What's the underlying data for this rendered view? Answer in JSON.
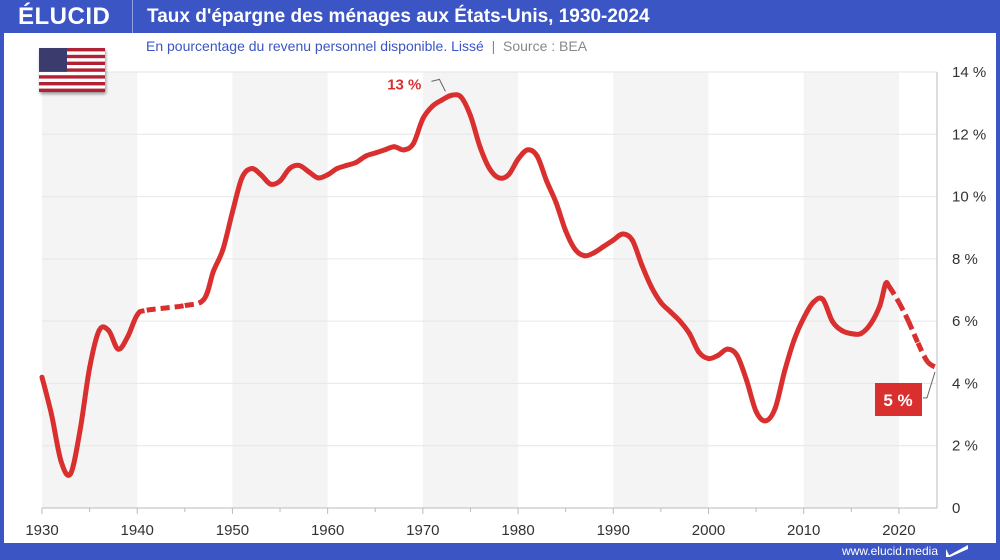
{
  "header": {
    "logo": "ÉLUCID",
    "title": "Taux d'épargne des ménages aux États-Unis, 1930-2024"
  },
  "subtitle": {
    "text": "En pourcentage du revenu personnel disponible. Lissé",
    "separator": "|",
    "source": "Source : BEA"
  },
  "footer": {
    "url": "www.elucid.media"
  },
  "colors": {
    "brand": "#3b55c4",
    "line": "#d9302f",
    "band": "#f4f4f4"
  },
  "chart_data": {
    "type": "line",
    "title": "Taux d'épargne des ménages aux États-Unis, 1930-2024",
    "xlim": [
      1930,
      2024
    ],
    "ylim": [
      0,
      14
    ],
    "x_ticks": [
      1930,
      1940,
      1950,
      1960,
      1970,
      1980,
      1990,
      2000,
      2010,
      2020
    ],
    "x_tick_labels": [
      "1930",
      "1940",
      "1950",
      "1960",
      "1970",
      "1980",
      "1990",
      "2000",
      "2010",
      "2020"
    ],
    "y_ticks": [
      0,
      2,
      4,
      6,
      8,
      10,
      12,
      14
    ],
    "y_tick_labels": [
      "0",
      "2 %",
      "4 %",
      "6 %",
      "8 %",
      "10 %",
      "12 %",
      "14 %"
    ],
    "y_axis": "right",
    "grid": true,
    "dashed_ranges": [
      [
        1940,
        1947
      ],
      [
        2019,
        2024
      ]
    ],
    "series": [
      {
        "x": [
          1930,
          1931,
          1932,
          1933,
          1934,
          1935,
          1936,
          1937,
          1938,
          1939,
          1940,
          1941,
          1945,
          1947,
          1948,
          1949,
          1950,
          1951,
          1952,
          1953,
          1954,
          1955,
          1956,
          1957,
          1958,
          1959,
          1960,
          1961,
          1962,
          1963,
          1964,
          1965,
          1966,
          1967,
          1968,
          1969,
          1970,
          1971,
          1972,
          1973,
          1974,
          1975,
          1976,
          1977,
          1978,
          1979,
          1980,
          1981,
          1982,
          1983,
          1984,
          1985,
          1986,
          1987,
          1988,
          1989,
          1990,
          1991,
          1992,
          1993,
          1994,
          1995,
          1996,
          1997,
          1998,
          1999,
          2000,
          2001,
          2002,
          2003,
          2004,
          2005,
          2006,
          2007,
          2008,
          2009,
          2010,
          2011,
          2012,
          2013,
          2014,
          2015,
          2016,
          2017,
          2018,
          2018.6,
          2019,
          2020,
          2021,
          2022,
          2023,
          2024
        ],
        "y": [
          4.2,
          3.0,
          1.5,
          1.1,
          2.5,
          4.5,
          5.7,
          5.7,
          5.1,
          5.5,
          6.2,
          6.35,
          6.5,
          6.7,
          7.6,
          8.3,
          9.5,
          10.6,
          10.9,
          10.7,
          10.4,
          10.5,
          10.9,
          11.0,
          10.8,
          10.6,
          10.7,
          10.9,
          11.0,
          11.1,
          11.3,
          11.4,
          11.5,
          11.6,
          11.5,
          11.7,
          12.5,
          12.9,
          13.1,
          13.25,
          13.2,
          12.6,
          11.6,
          10.9,
          10.6,
          10.7,
          11.2,
          11.5,
          11.3,
          10.5,
          9.8,
          8.9,
          8.3,
          8.1,
          8.2,
          8.4,
          8.6,
          8.8,
          8.6,
          7.8,
          7.1,
          6.6,
          6.3,
          6.0,
          5.6,
          5.0,
          4.8,
          4.9,
          5.1,
          4.9,
          4.1,
          3.1,
          2.8,
          3.2,
          4.4,
          5.4,
          6.1,
          6.6,
          6.7,
          6.0,
          5.7,
          5.6,
          5.6,
          5.9,
          6.5,
          7.2,
          7.1,
          6.6,
          6.0,
          5.3,
          4.7,
          4.5
        ]
      }
    ],
    "annotations": [
      {
        "text": "13 %",
        "x": 1973,
        "y": 13.25
      },
      {
        "text": "5 %",
        "x": 2024,
        "y": 4.5
      }
    ]
  }
}
